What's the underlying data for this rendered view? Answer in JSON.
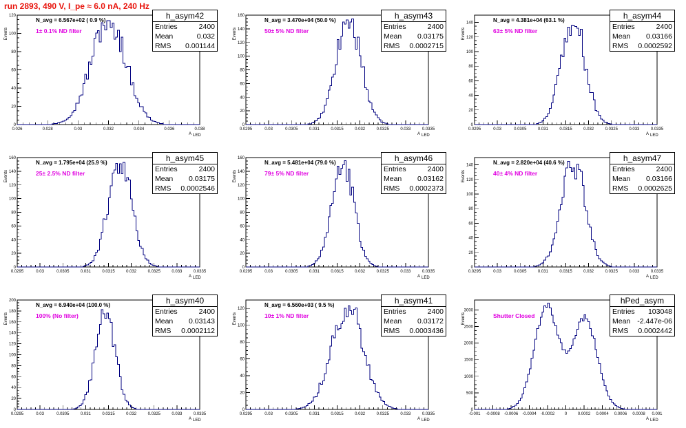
{
  "run_title": "run 2893,   490 V, I_pe ≈ 6.0 nA, 240 Hz",
  "stats_labels": {
    "entries": "Entries",
    "mean": "Mean",
    "rms": "RMS"
  },
  "ylabel": "Events",
  "xlabel_main": "A",
  "xlabel_sub": "LED",
  "panels": [
    {
      "name": "h_asym42",
      "entries": "2400",
      "mean": "0.032",
      "rms": "0.001144",
      "navg": "N_avg = 6.567e+02 ( 0.9 %)",
      "filter": "1± 0.1% ND filter"
    },
    {
      "name": "h_asym43",
      "entries": "2400",
      "mean": "0.03175",
      "rms": "0.0002715",
      "navg": "N_avg = 3.470e+04 (50.0 %)",
      "filter": "50± 5% ND filter"
    },
    {
      "name": "h_asym44",
      "entries": "2400",
      "mean": "0.03166",
      "rms": "0.0002592",
      "navg": "N_avg = 4.381e+04 (63.1 %)",
      "filter": "63± 5% ND filter"
    },
    {
      "name": "h_asym45",
      "entries": "2400",
      "mean": "0.03175",
      "rms": "0.0002546",
      "navg": "N_avg = 1.795e+04 (25.9 %)",
      "filter": "25± 2.5% ND filter"
    },
    {
      "name": "h_asym46",
      "entries": "2400",
      "mean": "0.03162",
      "rms": "0.0002373",
      "navg": "N_avg = 5.481e+04 (79.0 %)",
      "filter": "79± 5% ND filter"
    },
    {
      "name": "h_asym47",
      "entries": "2400",
      "mean": "0.03166",
      "rms": "0.0002625",
      "navg": "N_avg = 2.820e+04 (40.6 %)",
      "filter": "40± 4% ND filter"
    },
    {
      "name": "h_asym40",
      "entries": "2400",
      "mean": "0.03143",
      "rms": "0.0002112",
      "navg": "N_avg = 6.940e+04 (100.0 %)",
      "filter": "100% (No filter)"
    },
    {
      "name": "h_asym41",
      "entries": "2400",
      "mean": "0.03172",
      "rms": "0.0003436",
      "navg": "N_avg = 6.560e+03 ( 9.5 %)",
      "filter": "10± 1% ND filter"
    },
    {
      "name": "hPed_asym",
      "entries": "103048",
      "mean": "-2.447e-06",
      "rms": "0.0002442",
      "navg": "",
      "filter": "Shutter Closed"
    }
  ],
  "chart_data": [
    {
      "type": "histogram",
      "title": "h_asym42",
      "xlim": [
        0.026,
        0.038
      ],
      "ylim": [
        0,
        120
      ],
      "xticks": [
        "0.026",
        "0.028",
        "0.03",
        "0.032",
        "0.034",
        "0.036",
        "0.038"
      ],
      "yticks": [
        "0",
        "20",
        "40",
        "60",
        "80",
        "100",
        "120"
      ],
      "xticks_v": [
        0.026,
        0.028,
        0.03,
        0.032,
        0.034,
        0.036,
        0.038
      ],
      "yticks_v": [
        0,
        20,
        40,
        60,
        80,
        100,
        120
      ],
      "mean": 0.032,
      "rms": 0.001144,
      "peak": 116
    },
    {
      "type": "histogram",
      "title": "h_asym43",
      "xlim": [
        0.0295,
        0.0335
      ],
      "ylim": [
        0,
        160
      ],
      "xticks": [
        "0.0295",
        "0.03",
        "0.0305",
        "0.031",
        "0.0315",
        "0.032",
        "0.0325",
        "0.033",
        "0.0335"
      ],
      "yticks": [
        "0",
        "20",
        "40",
        "60",
        "80",
        "100",
        "120",
        "140",
        "160"
      ],
      "xticks_v": [
        0.0295,
        0.03,
        0.0305,
        0.031,
        0.0315,
        0.032,
        0.0325,
        0.033,
        0.0335
      ],
      "yticks_v": [
        0,
        20,
        40,
        60,
        80,
        100,
        120,
        140,
        160
      ],
      "mean": 0.03175,
      "rms": 0.0002715,
      "peak": 155
    },
    {
      "type": "histogram",
      "title": "h_asym44",
      "xlim": [
        0.0295,
        0.0335
      ],
      "ylim": [
        0,
        150
      ],
      "xticks": [
        "0.0295",
        "0.03",
        "0.0305",
        "0.031",
        "0.0315",
        "0.032",
        "0.0325",
        "0.033",
        "0.0335"
      ],
      "yticks": [
        "0",
        "20",
        "40",
        "60",
        "80",
        "100",
        "120",
        "140"
      ],
      "xticks_v": [
        0.0295,
        0.03,
        0.0305,
        0.031,
        0.0315,
        0.032,
        0.0325,
        0.033,
        0.0335
      ],
      "yticks_v": [
        0,
        20,
        40,
        60,
        80,
        100,
        120,
        140
      ],
      "mean": 0.03166,
      "rms": 0.0002592,
      "peak": 145
    },
    {
      "type": "histogram",
      "title": "h_asym45",
      "xlim": [
        0.0295,
        0.0335
      ],
      "ylim": [
        0,
        160
      ],
      "xticks": [
        "0.0295",
        "0.03",
        "0.0305",
        "0.031",
        "0.0315",
        "0.032",
        "0.0325",
        "0.033",
        "0.0335"
      ],
      "yticks": [
        "0",
        "20",
        "40",
        "60",
        "80",
        "100",
        "120",
        "140",
        "160"
      ],
      "xticks_v": [
        0.0295,
        0.03,
        0.0305,
        0.031,
        0.0315,
        0.032,
        0.0325,
        0.033,
        0.0335
      ],
      "yticks_v": [
        0,
        20,
        40,
        60,
        80,
        100,
        120,
        140,
        160
      ],
      "mean": 0.03175,
      "rms": 0.0002546,
      "peak": 158
    },
    {
      "type": "histogram",
      "title": "h_asym46",
      "xlim": [
        0.0295,
        0.0335
      ],
      "ylim": [
        0,
        160
      ],
      "xticks": [
        "0.0295",
        "0.03",
        "0.0305",
        "0.031",
        "0.0315",
        "0.032",
        "0.0325",
        "0.033",
        "0.0335"
      ],
      "yticks": [
        "0",
        "20",
        "40",
        "60",
        "80",
        "100",
        "120",
        "140",
        "160"
      ],
      "xticks_v": [
        0.0295,
        0.03,
        0.0305,
        0.031,
        0.0315,
        0.032,
        0.0325,
        0.033,
        0.0335
      ],
      "yticks_v": [
        0,
        20,
        40,
        60,
        80,
        100,
        120,
        140,
        160
      ],
      "mean": 0.03162,
      "rms": 0.0002373,
      "peak": 158
    },
    {
      "type": "histogram",
      "title": "h_asym47",
      "xlim": [
        0.0295,
        0.0335
      ],
      "ylim": [
        0,
        150
      ],
      "xticks": [
        "0.0295",
        "0.03",
        "0.0305",
        "0.031",
        "0.0315",
        "0.032",
        "0.0325",
        "0.033",
        "0.0335"
      ],
      "yticks": [
        "0",
        "20",
        "40",
        "60",
        "80",
        "100",
        "120",
        "140"
      ],
      "xticks_v": [
        0.0295,
        0.03,
        0.0305,
        0.031,
        0.0315,
        0.032,
        0.0325,
        0.033,
        0.0335
      ],
      "yticks_v": [
        0,
        20,
        40,
        60,
        80,
        100,
        120,
        140
      ],
      "mean": 0.03166,
      "rms": 0.0002625,
      "peak": 145
    },
    {
      "type": "histogram",
      "title": "h_asym40",
      "xlim": [
        0.0295,
        0.0335
      ],
      "ylim": [
        0,
        200
      ],
      "xticks": [
        "0.0295",
        "0.03",
        "0.0305",
        "0.031",
        "0.0315",
        "0.032",
        "0.0325",
        "0.033",
        "0.0335"
      ],
      "yticks": [
        "0",
        "20",
        "40",
        "60",
        "80",
        "100",
        "120",
        "140",
        "160",
        "180",
        "200"
      ],
      "xticks_v": [
        0.0295,
        0.03,
        0.0305,
        0.031,
        0.0315,
        0.032,
        0.0325,
        0.033,
        0.0335
      ],
      "yticks_v": [
        0,
        20,
        40,
        60,
        80,
        100,
        120,
        140,
        160,
        180,
        200
      ],
      "mean": 0.03143,
      "rms": 0.0002112,
      "peak": 185
    },
    {
      "type": "histogram",
      "title": "h_asym41",
      "xlim": [
        0.0295,
        0.0335
      ],
      "ylim": [
        0,
        130
      ],
      "xticks": [
        "0.0295",
        "0.03",
        "0.0305",
        "0.031",
        "0.0315",
        "0.032",
        "0.0325",
        "0.033",
        "0.0335"
      ],
      "yticks": [
        "0",
        "20",
        "40",
        "60",
        "80",
        "100",
        "120"
      ],
      "xticks_v": [
        0.0295,
        0.03,
        0.0305,
        0.031,
        0.0315,
        0.032,
        0.0325,
        0.033,
        0.0335
      ],
      "yticks_v": [
        0,
        20,
        40,
        60,
        80,
        100,
        120
      ],
      "mean": 0.03172,
      "rms": 0.0003436,
      "peak": 125
    },
    {
      "type": "histogram",
      "title": "hPed_asym",
      "xlim": [
        -0.001,
        0.001
      ],
      "ylim": [
        0,
        3300
      ],
      "xticks": [
        "-0.001",
        "-0.0008",
        "-0.0006",
        "-0.0004",
        "-0.0002",
        "0",
        "0.0002",
        "0.0004",
        "0.0006",
        "0.0008",
        "0.001"
      ],
      "yticks": [
        "0",
        "500",
        "1000",
        "1500",
        "2000",
        "2500",
        "3000"
      ],
      "xticks_v": [
        -0.001,
        -0.0008,
        -0.0006,
        -0.0004,
        -0.0002,
        0,
        0.0002,
        0.0004,
        0.0006,
        0.0008,
        0.001
      ],
      "yticks_v": [
        0,
        500,
        1000,
        1500,
        2000,
        2500,
        3000
      ],
      "mean": -2.447e-06,
      "rms": 0.0002442,
      "peak": 3100,
      "bimodal": true
    }
  ]
}
